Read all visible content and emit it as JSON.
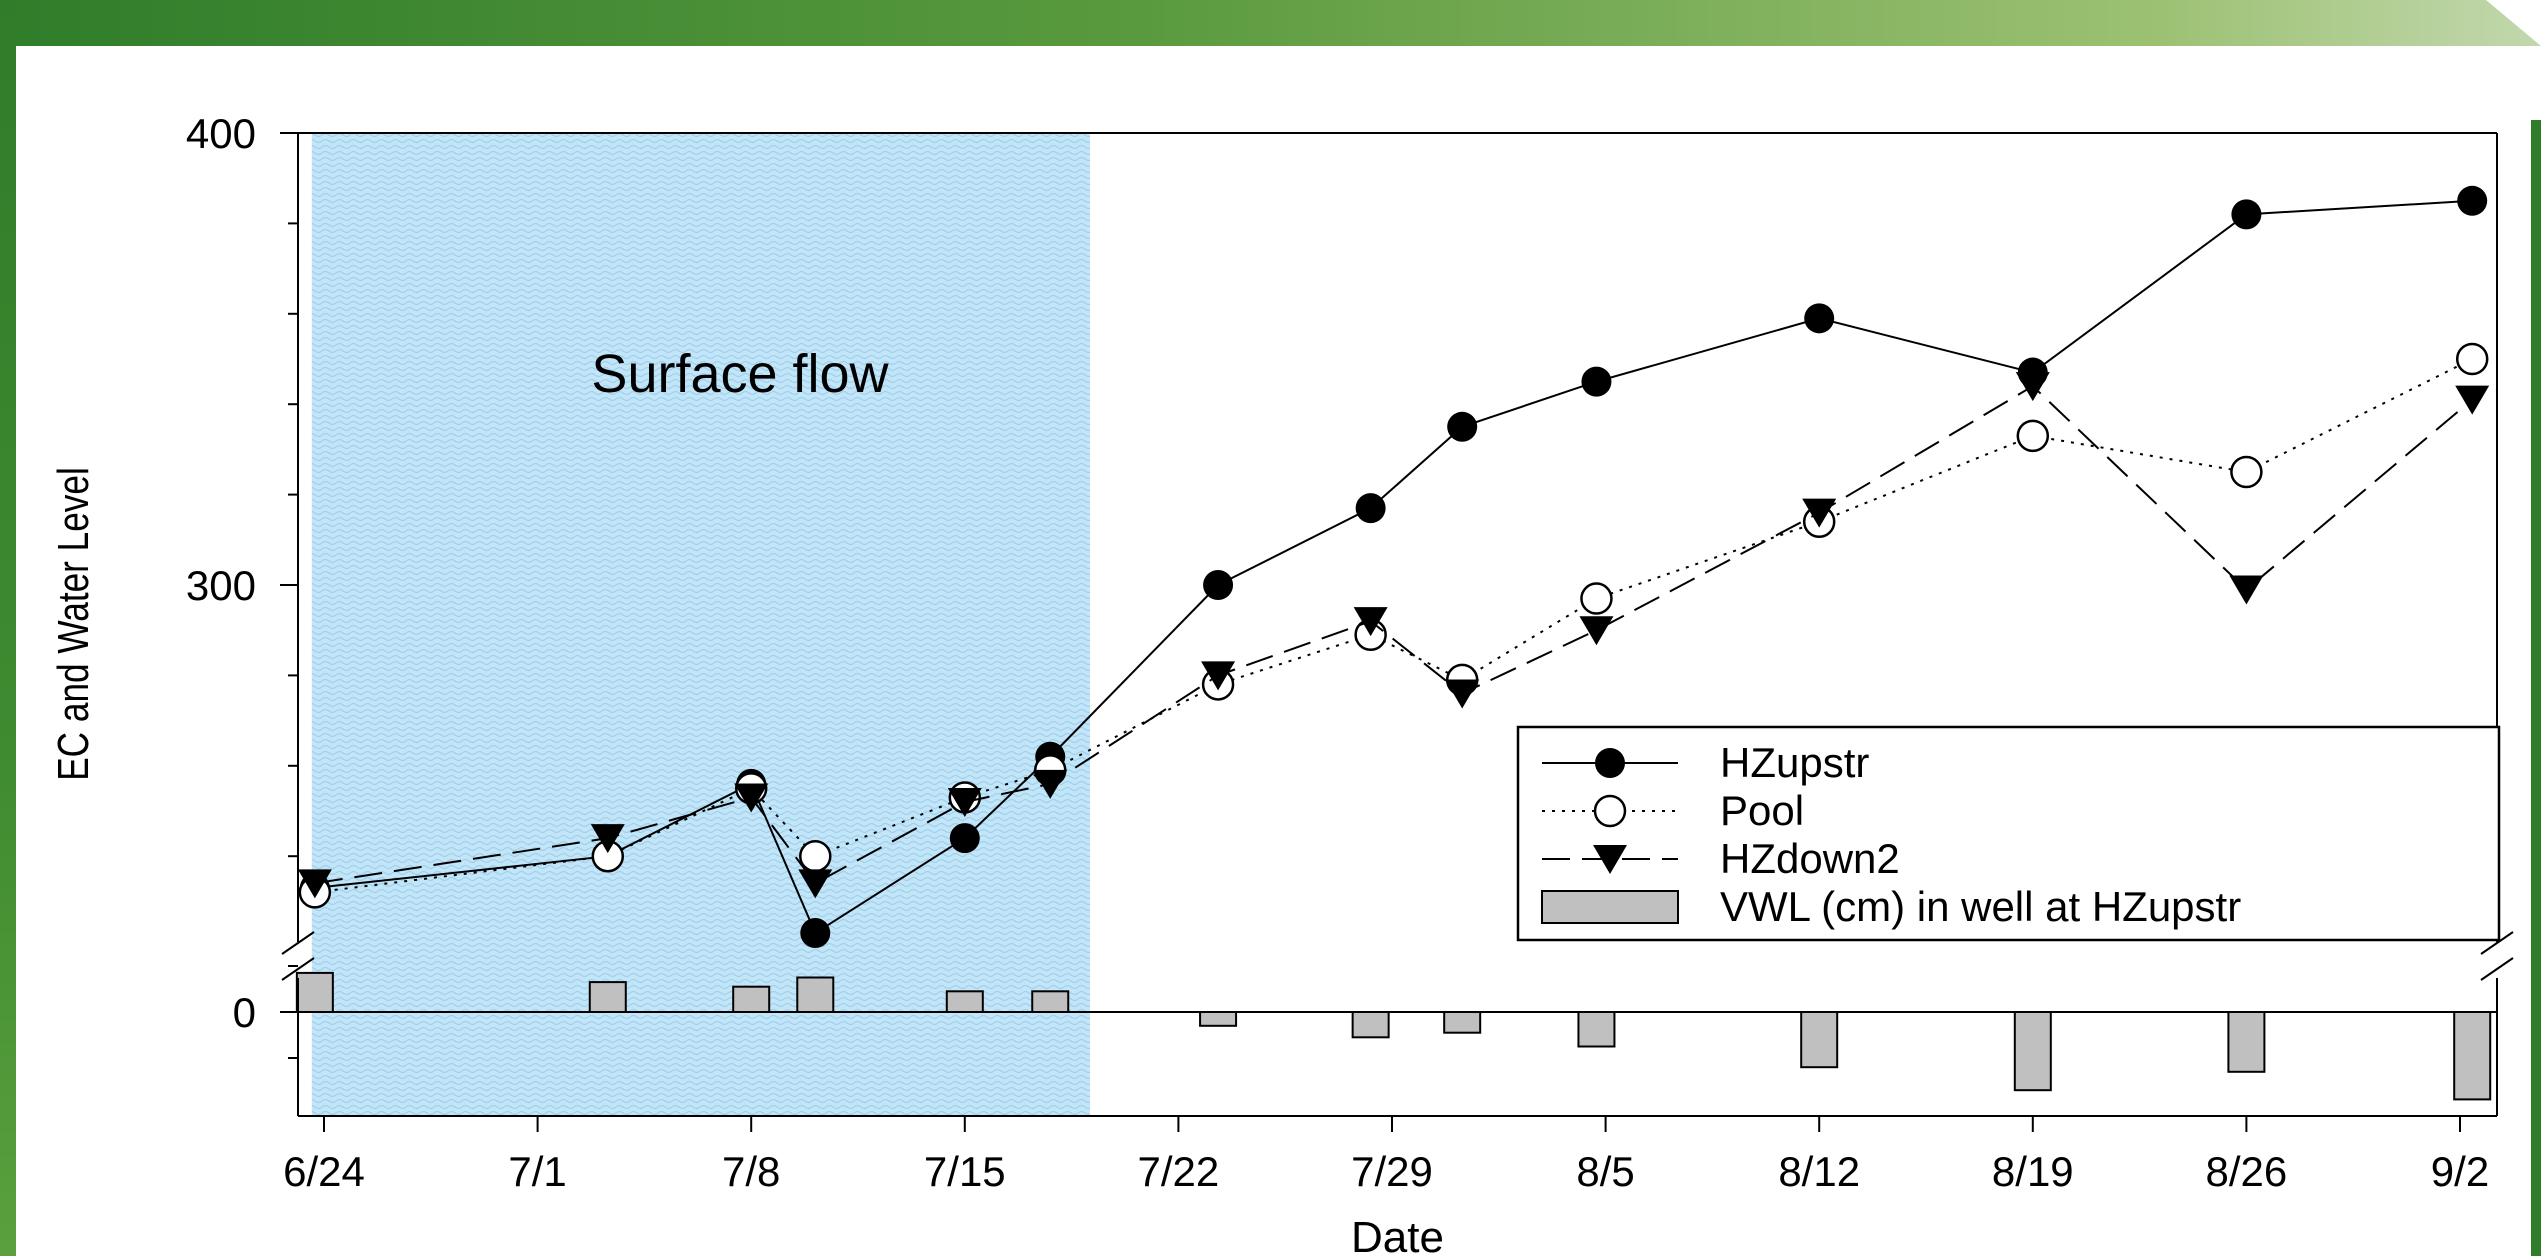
{
  "chart_data": {
    "type": "line",
    "xlabel": "Date",
    "ylabel": "EC and Water Level",
    "x_tick_labels": [
      "6/24",
      "7/1",
      "7/8",
      "7/15",
      "7/22",
      "7/29",
      "8/5",
      "8/12",
      "8/19",
      "8/26",
      "9/2"
    ],
    "x_tick_days": [
      0,
      7,
      14,
      21,
      28,
      35,
      42,
      49,
      56,
      63,
      70
    ],
    "y_ticks_upper": [
      300,
      400
    ],
    "y_tick_lower": 0,
    "annotation": "Surface flow",
    "surface_flow_days": [
      -0.4,
      25.1
    ],
    "series": [
      {
        "name": "HZupstr",
        "marker": "filled-circle",
        "line": "solid",
        "x": [
          -0.3,
          9.3,
          14,
          16.1,
          21,
          23.8,
          29.3,
          34.3,
          37.3,
          41.7,
          49,
          56,
          63,
          70.4
        ],
        "y": [
          233,
          240,
          256,
          223,
          244,
          262,
          300,
          317,
          335,
          345,
          359,
          347,
          382,
          385
        ]
      },
      {
        "name": "Pool",
        "marker": "open-circle",
        "line": "dotted",
        "x": [
          -0.3,
          9.3,
          14,
          16.1,
          21,
          23.8,
          29.3,
          34.3,
          37.3,
          41.7,
          49,
          56,
          63,
          70.4
        ],
        "y": [
          232,
          240,
          255,
          240,
          253,
          259,
          278,
          289,
          279,
          297,
          314,
          333,
          325,
          350
        ]
      },
      {
        "name": "HZdown2",
        "marker": "filled-triangle-down",
        "line": "dashed",
        "x": [
          -0.3,
          9.3,
          14,
          16.1,
          21,
          23.8,
          29.3,
          34.3,
          37.3,
          41.7,
          49,
          56,
          63,
          70.4
        ],
        "y": [
          234,
          244,
          253,
          234,
          252,
          256,
          280,
          292,
          276,
          290,
          316,
          344,
          299,
          341
        ]
      }
    ],
    "bars": {
      "name": "VWL (cm) in well at HZupstr",
      "x": [
        -0.3,
        9.3,
        14,
        16.1,
        21,
        23.8,
        29.3,
        34.3,
        37.3,
        41.7,
        49,
        56,
        63,
        70.4
      ],
      "y": [
        8.5,
        6.5,
        5.5,
        7.5,
        4.5,
        4.5,
        -3,
        -5.5,
        -4.5,
        -7.5,
        -12,
        -17,
        -13,
        -19
      ]
    },
    "legend_position": "lower-right",
    "grid": false
  }
}
